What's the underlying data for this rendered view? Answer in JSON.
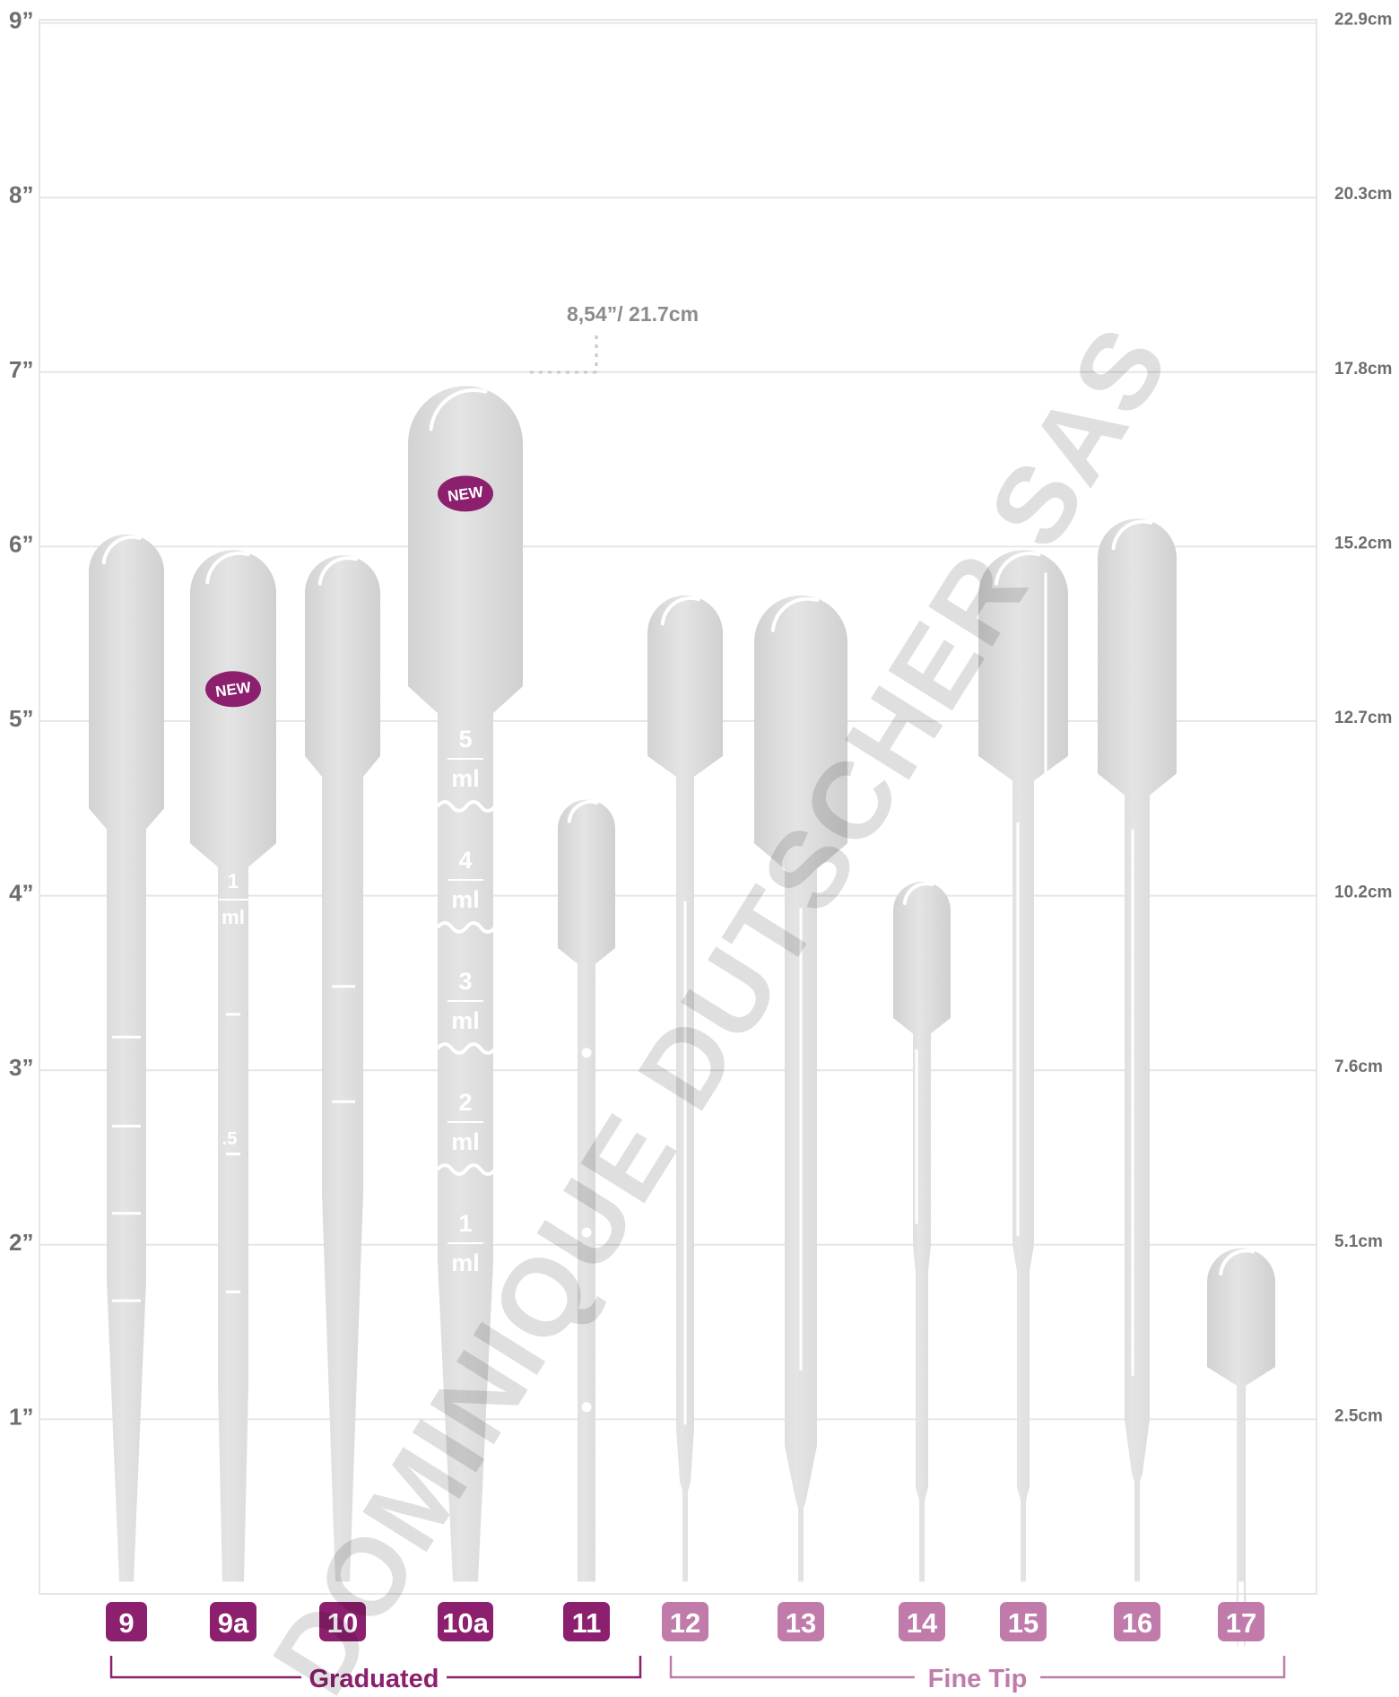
{
  "axis_left": {
    "ticks": [
      {
        "value": 1,
        "label": "1”"
      },
      {
        "value": 2,
        "label": "2”"
      },
      {
        "value": 3,
        "label": "3”"
      },
      {
        "value": 4,
        "label": "4”"
      },
      {
        "value": 5,
        "label": "5”"
      },
      {
        "value": 6,
        "label": "6”"
      },
      {
        "value": 7,
        "label": "7”"
      },
      {
        "value": 8,
        "label": "8”"
      },
      {
        "value": 9,
        "label": "9”"
      }
    ]
  },
  "axis_right": {
    "ticks": [
      {
        "value": 1,
        "label": "2.5cm"
      },
      {
        "value": 2,
        "label": "5.1cm"
      },
      {
        "value": 3,
        "label": "7.6cm"
      },
      {
        "value": 4,
        "label": "10.2cm"
      },
      {
        "value": 5,
        "label": "12.7cm"
      },
      {
        "value": 6,
        "label": "15.2cm"
      },
      {
        "value": 7,
        "label": "17.8cm"
      },
      {
        "value": 8,
        "label": "20.3cm"
      },
      {
        "value": 9,
        "label": "22.9cm"
      }
    ]
  },
  "colors": {
    "graduated": "#8c1f6e",
    "fine_tip": "#c07bab",
    "pipette": "#d9d9d9",
    "grid": "#e6e6e6"
  },
  "pipettes": [
    {
      "label": "9",
      "group": "graduated",
      "overall_height_in": 6.07,
      "new": false
    },
    {
      "label": "9a",
      "group": "graduated",
      "overall_height_in": 5.98,
      "new": true
    },
    {
      "label": "10",
      "group": "graduated",
      "overall_height_in": 5.95,
      "new": false
    },
    {
      "label": "10a",
      "group": "graduated",
      "overall_height_in": 6.92,
      "new": true,
      "volume_marks": [
        "5",
        "4",
        "3",
        "2",
        "1"
      ],
      "unit": "ml"
    },
    {
      "label": "11",
      "group": "graduated",
      "overall_height_in": 4.55,
      "new": false
    },
    {
      "label": "12",
      "group": "fine_tip",
      "overall_height_in": 5.72,
      "new": false
    },
    {
      "label": "13",
      "group": "fine_tip",
      "overall_height_in": 5.72,
      "new": false
    },
    {
      "label": "14",
      "group": "fine_tip",
      "overall_height_in": 4.08,
      "new": false
    },
    {
      "label": "15",
      "group": "fine_tip",
      "overall_height_in": 5.98,
      "new": false
    },
    {
      "label": "16",
      "group": "fine_tip",
      "overall_height_in": 6.16,
      "new": false
    },
    {
      "label": "17",
      "group": "fine_tip",
      "overall_height_in": 1.98,
      "new": false
    }
  ],
  "pipette_9a_marks": {
    "top": "1",
    "unit": "ml",
    "half": ".5"
  },
  "new_badge": "NEW",
  "groups": [
    {
      "id": "graduated",
      "name": "Graduated"
    },
    {
      "id": "fine_tip",
      "name": "Fine Tip"
    }
  ],
  "annotation": {
    "text": "8,54”/ 21.7cm",
    "value_in": 8.54
  },
  "watermark": "DOMINIQUE DUTSCHER SAS",
  "chart_data": {
    "type": "bar",
    "categories": [
      "9",
      "9a",
      "10",
      "10a",
      "11",
      "12",
      "13",
      "14",
      "15",
      "16",
      "17"
    ],
    "values": [
      6.07,
      5.98,
      5.95,
      6.92,
      4.55,
      5.72,
      5.72,
      4.08,
      5.98,
      6.16,
      1.98
    ],
    "ylim": [
      0,
      9
    ],
    "grid": true,
    "series": [
      {
        "name": "Graduated",
        "categories": [
          "9",
          "9a",
          "10",
          "10a",
          "11"
        ]
      },
      {
        "name": "Fine Tip",
        "categories": [
          "12",
          "13",
          "14",
          "15",
          "16",
          "17"
        ]
      }
    ]
  }
}
